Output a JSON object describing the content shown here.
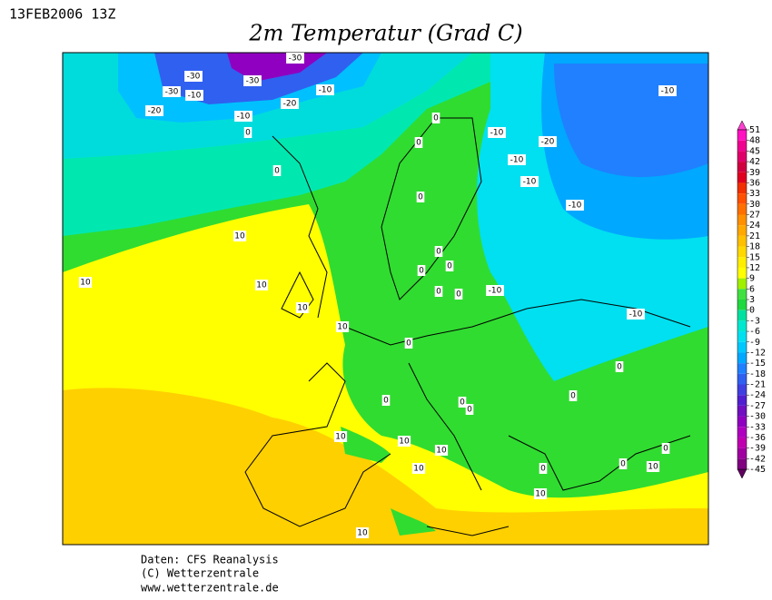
{
  "header": {
    "timestamp": "13FEB2006 13Z",
    "title": "2m Temperatur (Grad C)"
  },
  "colorbar": {
    "labels": [
      51,
      48,
      45,
      42,
      39,
      36,
      33,
      30,
      27,
      24,
      21,
      18,
      15,
      12,
      9,
      6,
      3,
      0,
      -3,
      -6,
      -9,
      -12,
      -15,
      -18,
      -21,
      -24,
      -27,
      -30,
      -33,
      -36,
      -39,
      -42,
      -45
    ],
    "colors": [
      "#ff10c0",
      "#f00090",
      "#e0006a",
      "#d00040",
      "#e00020",
      "#f03000",
      "#ff5000",
      "#ff7000",
      "#ff9000",
      "#ffa800",
      "#ffc000",
      "#ffd800",
      "#ffee00",
      "#ffff00",
      "#a0f000",
      "#40e040",
      "#20d840",
      "#00e0a0",
      "#00e8d0",
      "#00e0f0",
      "#00c8ff",
      "#00a8ff",
      "#2080ff",
      "#3060f0",
      "#4040e0",
      "#5020d0",
      "#7010c0",
      "#9000c0",
      "#b000c0",
      "#c000b0",
      "#a000a0",
      "#800080"
    ],
    "over_color": "#ff40d0",
    "under_color": "#600060"
  },
  "contour_labels": [
    "-30",
    "-30",
    "-30",
    "-10",
    "-30",
    "-10",
    "-20",
    "-20",
    "-10",
    "0",
    "0",
    "-10",
    "-10",
    "-20",
    "-10",
    "-10",
    "-10",
    "0",
    "0",
    "0",
    "0",
    "0",
    "0",
    "0",
    "0",
    "-10",
    "-10",
    "10",
    "10",
    "10",
    "10",
    "10",
    "0",
    "0",
    "0",
    "0",
    "0",
    "0",
    "10",
    "10",
    "10",
    "10",
    "0",
    "0",
    "10",
    "10",
    "0",
    "10"
  ],
  "footer": {
    "lines": [
      "Daten: CFS Reanalysis",
      "(C) Wetterzentrale",
      "www.wetterzentrale.de"
    ]
  }
}
